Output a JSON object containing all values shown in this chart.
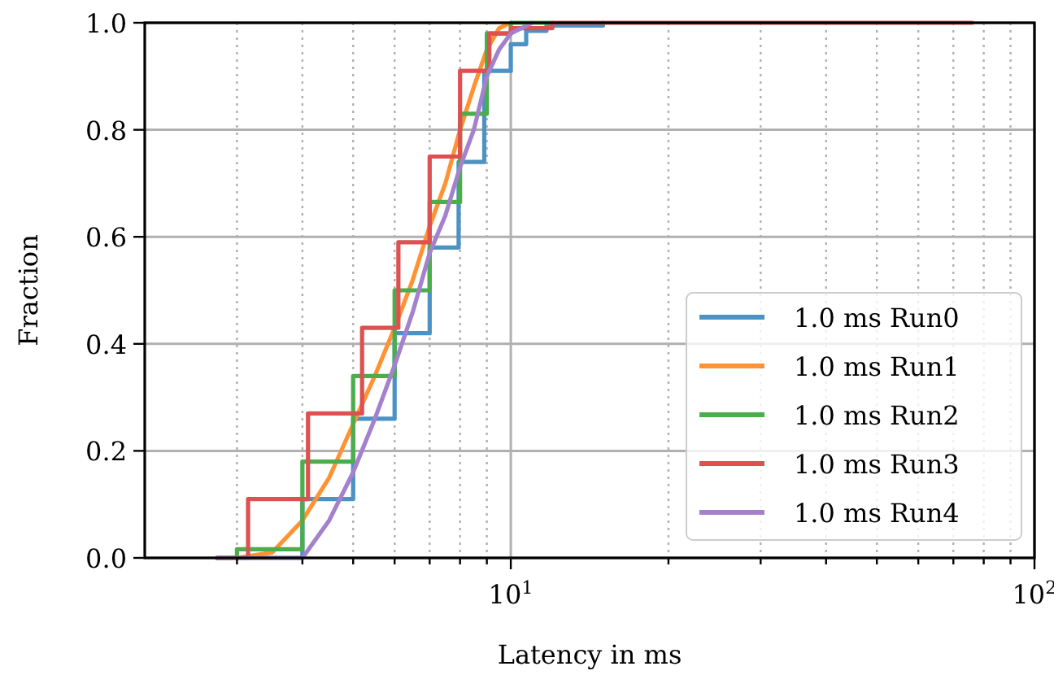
{
  "chart_data": {
    "type": "step",
    "xlabel": "Latency in ms",
    "ylabel": "Fraction",
    "log": "x",
    "grid": true,
    "legend": "bottom right",
    "xlim": [
      2,
      100
    ],
    "xticks": [
      {
        "value": 3,
        "label": null
      },
      {
        "value": 4,
        "label": null
      },
      {
        "value": 5,
        "label": null
      },
      {
        "value": 6,
        "label": null
      },
      {
        "value": 7,
        "label": null
      },
      {
        "value": 8,
        "label": null
      },
      {
        "value": 9,
        "label": null
      },
      {
        "value": 10,
        "label": "10$^{1}$"
      },
      {
        "value": 20,
        "label": null
      },
      {
        "value": 30,
        "label": null
      },
      {
        "value": 40,
        "label": null
      },
      {
        "value": 50,
        "label": null
      },
      {
        "value": 60,
        "label": null
      },
      {
        "value": 70,
        "label": null
      },
      {
        "value": 80,
        "label": null
      },
      {
        "value": 90,
        "label": null
      },
      {
        "value": 100,
        "label": "10$^{2}$"
      }
    ],
    "ylim": [
      0,
      1
    ],
    "yticks": [
      {
        "value": 0,
        "label": "0.0"
      },
      {
        "value": 0.2,
        "label": "0.2"
      },
      {
        "value": 0.4,
        "label": "0.4"
      },
      {
        "value": 0.6,
        "label": "0.6"
      },
      {
        "value": 0.8,
        "label": "0.8"
      },
      {
        "value": 1,
        "label": "1.0"
      }
    ],
    "series": [
      {
        "name": "1.0 ms Run0",
        "color": "#4c92c3",
        "x": [
          2.75,
          4.0,
          5.0,
          6.0,
          7.0,
          7.95,
          8.9,
          10.0,
          10.7,
          11.7,
          15
        ],
        "values": [
          0,
          0.11,
          0.26,
          0.42,
          0.58,
          0.74,
          0.91,
          0.96,
          0.985,
          0.995,
          1.0
        ]
      },
      {
        "name": "1.0 ms Run1",
        "type": "line",
        "color": "#ff9233",
        "x": [
          2.75,
          3.0,
          3.5,
          4.0,
          4.5,
          5.0,
          5.5,
          6.0,
          6.5,
          7.0,
          7.5,
          8.0,
          8.5,
          9.0,
          9.5,
          10
        ],
        "values": [
          0,
          0,
          0.01,
          0.07,
          0.15,
          0.25,
          0.34,
          0.43,
          0.52,
          0.62,
          0.7,
          0.8,
          0.88,
          0.95,
          0.99,
          1.0
        ]
      },
      {
        "name": "1.0 ms Run2",
        "color": "#4cad4c",
        "x": [
          2.75,
          3.0,
          4.0,
          5.0,
          6.0,
          7.0,
          8.0,
          9.0,
          10.0,
          12
        ],
        "values": [
          0,
          0.016,
          0.18,
          0.34,
          0.5,
          0.665,
          0.83,
          0.98,
          1.0,
          1.0
        ]
      },
      {
        "name": "1.0 ms Run3",
        "color": "#dd5151",
        "x": [
          2.75,
          3.15,
          4.1,
          5.2,
          6.1,
          7.0,
          8.0,
          9.1,
          10.0,
          12,
          76
        ],
        "values": [
          0,
          0.11,
          0.27,
          0.43,
          0.59,
          0.75,
          0.91,
          0.98,
          0.99,
          1.0,
          1.0
        ]
      },
      {
        "name": "1.0 ms Run4",
        "type": "line",
        "color": "#a481cc",
        "x": [
          2.75,
          4.0,
          4.5,
          5.0,
          5.5,
          6.0,
          6.5,
          7.0,
          7.5,
          8.0,
          8.5,
          9.0,
          9.5,
          10,
          11
        ],
        "values": [
          0,
          0,
          0.07,
          0.16,
          0.26,
          0.36,
          0.46,
          0.57,
          0.64,
          0.73,
          0.8,
          0.9,
          0.95,
          0.98,
          1.0
        ]
      }
    ]
  }
}
